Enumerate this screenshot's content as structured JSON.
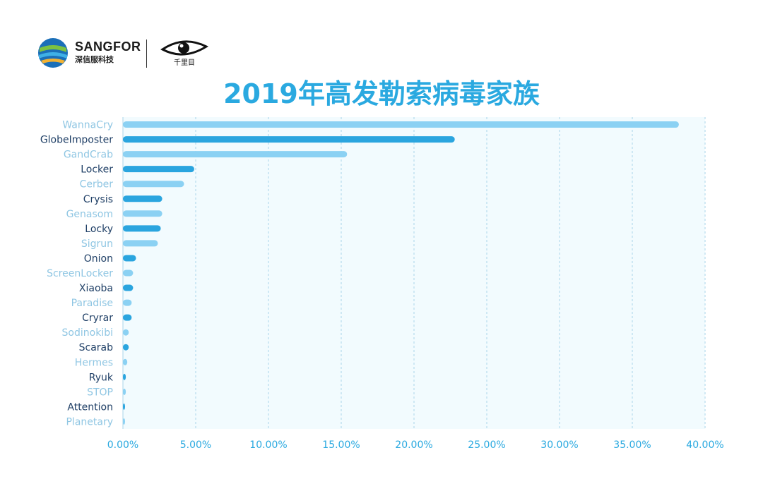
{
  "brand": {
    "name": "SANGFOR",
    "subtitle": "深信服科技",
    "partner_text": "千里目"
  },
  "colors": {
    "dark_bar": "#2aa5df",
    "light_bar": "#8bd1f3",
    "dark_label": "#1f3f66",
    "light_label": "#8fc6e3",
    "plot_bg": "#f2fbfe",
    "grid": "#a9d4ea",
    "tick": "#2aa9e0",
    "title": "#2aa9e0"
  },
  "chart_data": {
    "type": "bar",
    "orientation": "horizontal",
    "title": "2019年高发勒索病毒家族",
    "xlabel": "",
    "ylabel": "",
    "xlim": [
      0,
      0.4
    ],
    "xticks": [
      "0.00%",
      "5.00%",
      "10.00%",
      "15.00%",
      "20.00%",
      "25.00%",
      "30.00%",
      "35.00%",
      "40.00%"
    ],
    "grid": "vertical-dashed",
    "categories": [
      "WannaCry",
      "GlobeImposter",
      "GandCrab",
      "Locker",
      "Cerber",
      "Crysis",
      "Genasom",
      "Locky",
      "Sigrun",
      "Onion",
      "ScreenLocker",
      "Xiaoba",
      "Paradise",
      "Cryrar",
      "Sodinokibi",
      "Scarab",
      "Hermes",
      "Ryuk",
      "STOP",
      "Attention",
      "Planetary"
    ],
    "values": [
      0.382,
      0.228,
      0.154,
      0.049,
      0.042,
      0.027,
      0.027,
      0.026,
      0.024,
      0.009,
      0.007,
      0.007,
      0.006,
      0.006,
      0.004,
      0.004,
      0.003,
      0.002,
      0.002,
      0.001,
      0.001
    ],
    "styles": [
      "light",
      "dark",
      "light",
      "dark",
      "light",
      "dark",
      "light",
      "dark",
      "light",
      "dark",
      "light",
      "dark",
      "light",
      "dark",
      "light",
      "dark",
      "light",
      "dark",
      "light",
      "dark",
      "light"
    ]
  }
}
